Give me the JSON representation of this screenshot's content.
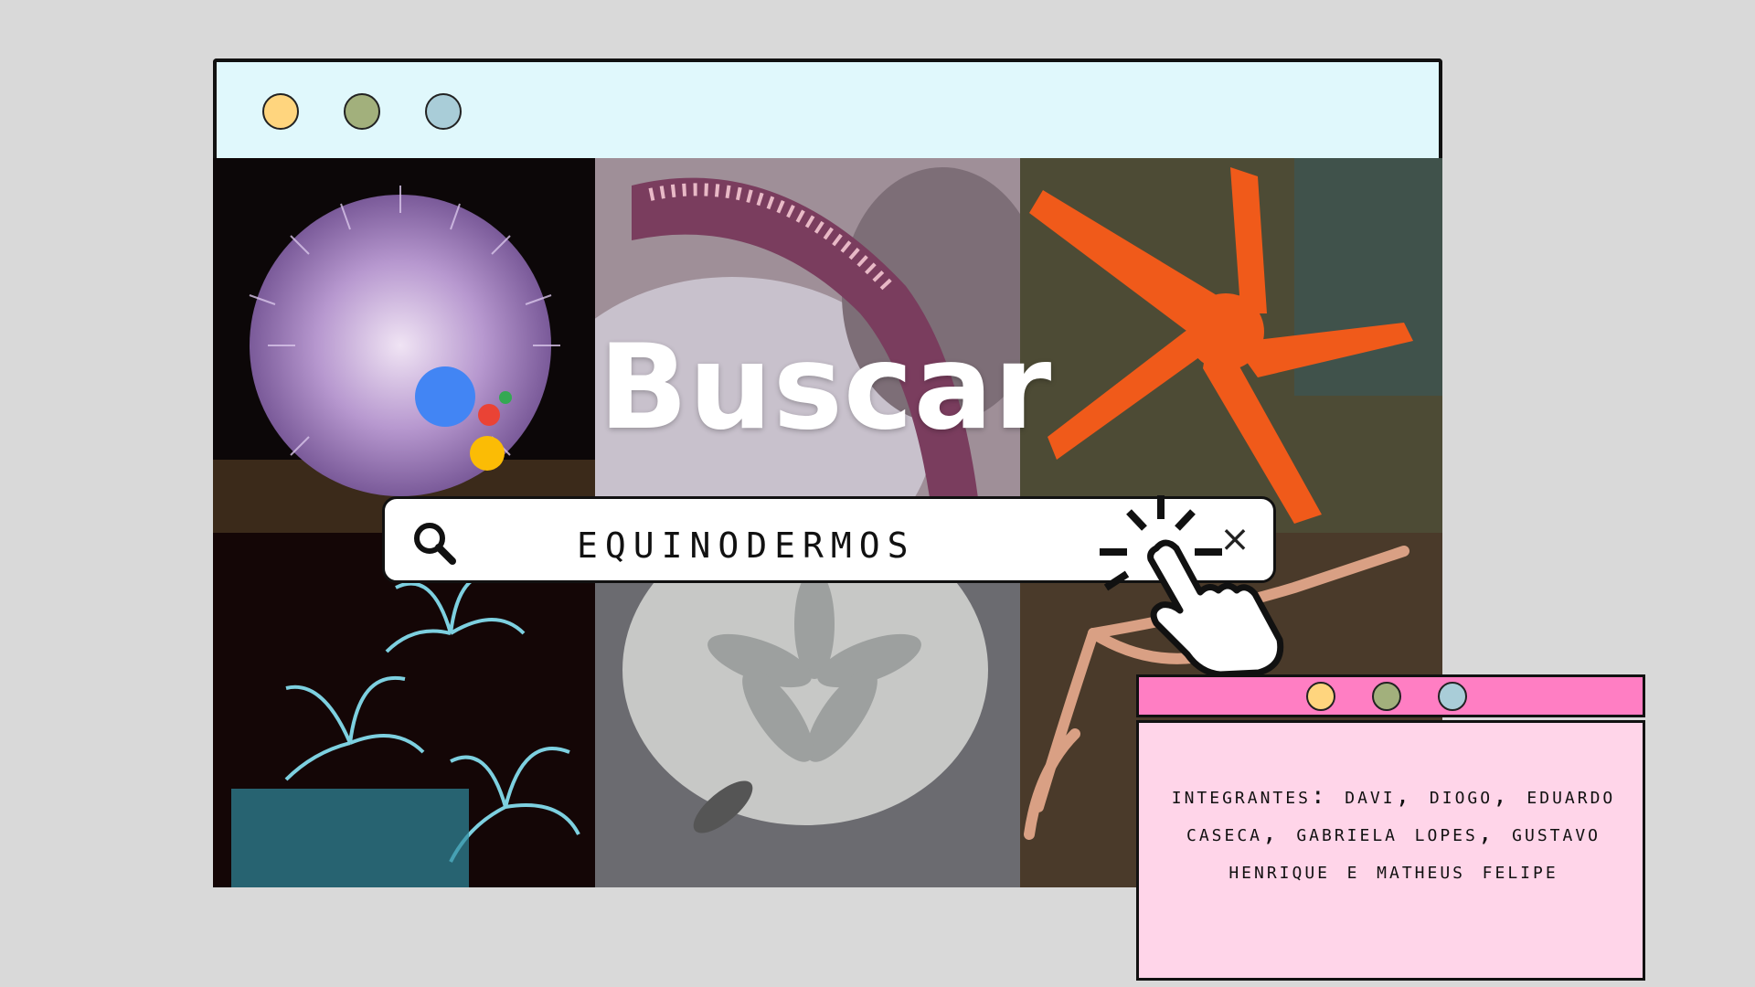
{
  "window": {
    "title_dots": [
      {
        "name": "yellow",
        "color": "#ffd57e"
      },
      {
        "name": "green",
        "color": "#a2b07c"
      },
      {
        "name": "blue",
        "color": "#a9cdd8"
      }
    ]
  },
  "images": [
    {
      "icon": "sea-urchin-photo"
    },
    {
      "icon": "starfish-arm-photo"
    },
    {
      "icon": "orange-starfish-photo"
    },
    {
      "icon": "sea-lily-photo"
    },
    {
      "icon": "sand-dollar-photo"
    },
    {
      "icon": "brittle-star-photo"
    }
  ],
  "heading": "Buscar",
  "assistant_colors": [
    "#4285f4",
    "#ea4335",
    "#fbbc05",
    "#34a853"
  ],
  "search": {
    "query": "EQUINODERMOS",
    "search_icon": "magnifier-icon",
    "clear_icon": "close-icon",
    "clear_symbol": "×"
  },
  "popup": {
    "bar_color": "#ff7ec3",
    "body_color": "#ffd5e9",
    "text": "INTEGRANTES: DAVI, DIOGO, EDUARDO CASECA, GABRIELA LOPES, GUSTAVO HENRIQUE E MATHEUS FELIPE"
  }
}
